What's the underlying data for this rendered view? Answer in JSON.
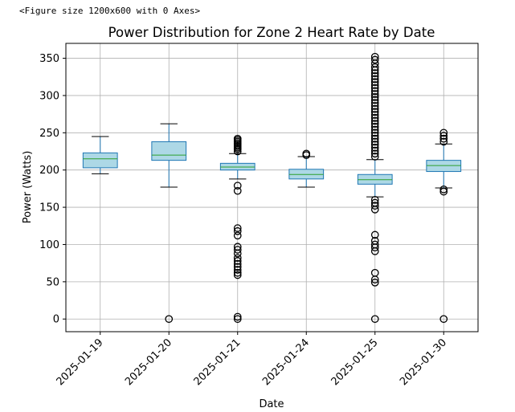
{
  "output_text": "<Figure size 1200x600 with 0 Axes>",
  "colors": {
    "box_fill": "#add8e6",
    "box_edge": "#1f77b4",
    "median": "#2ca02c",
    "whisker": "#1f77b4",
    "outlier_edge": "#000000",
    "grid": "#b0b0b0"
  },
  "chart_data": {
    "type": "box",
    "title": "Power Distribution for Zone 2 Heart Rate by Date",
    "xlabel": "Date",
    "ylabel": "Power (Watts)",
    "ylim": [
      -17,
      370
    ],
    "yticks": [
      0,
      50,
      100,
      150,
      200,
      250,
      300,
      350
    ],
    "grid": true,
    "categories": [
      "2025-01-19",
      "2025-01-20",
      "2025-01-21",
      "2025-01-24",
      "2025-01-25",
      "2025-01-30"
    ],
    "boxes": [
      {
        "category": "2025-01-19",
        "whisker_low": 195,
        "q1": 203,
        "median": 215,
        "q3": 223,
        "whisker_high": 245,
        "outliers": []
      },
      {
        "category": "2025-01-20",
        "whisker_low": 177,
        "q1": 213,
        "median": 220,
        "q3": 238,
        "whisker_high": 262,
        "outliers": [
          0
        ]
      },
      {
        "category": "2025-01-21",
        "whisker_low": 188,
        "q1": 200,
        "median": 204,
        "q3": 209,
        "whisker_high": 222,
        "outliers": [
          225,
          228,
          230,
          232,
          234,
          236,
          238,
          240,
          242,
          179,
          172,
          122,
          118,
          112,
          97,
          93,
          88,
          82,
          78,
          74,
          70,
          66,
          62,
          59,
          3,
          0
        ]
      },
      {
        "category": "2025-01-24",
        "whisker_low": 177,
        "q1": 188,
        "median": 194,
        "q3": 201,
        "whisker_high": 218,
        "outliers": [
          220,
          222
        ]
      },
      {
        "category": "2025-01-25",
        "whisker_low": 164,
        "q1": 181,
        "median": 187,
        "q3": 194,
        "whisker_high": 214,
        "outliers": [
          352,
          348,
          343,
          338,
          334,
          330,
          326,
          322,
          318,
          314,
          310,
          306,
          302,
          298,
          294,
          290,
          286,
          282,
          278,
          274,
          270,
          266,
          262,
          258,
          254,
          250,
          246,
          242,
          238,
          234,
          230,
          226,
          222,
          218,
          160,
          156,
          152,
          147,
          113,
          105,
          100,
          96,
          91,
          62,
          53,
          49,
          0
        ]
      },
      {
        "category": "2025-01-30",
        "whisker_low": 176,
        "q1": 198,
        "median": 206,
        "q3": 213,
        "whisker_high": 235,
        "outliers": [
          250,
          246,
          242,
          238,
          174,
          171,
          0
        ]
      }
    ]
  }
}
